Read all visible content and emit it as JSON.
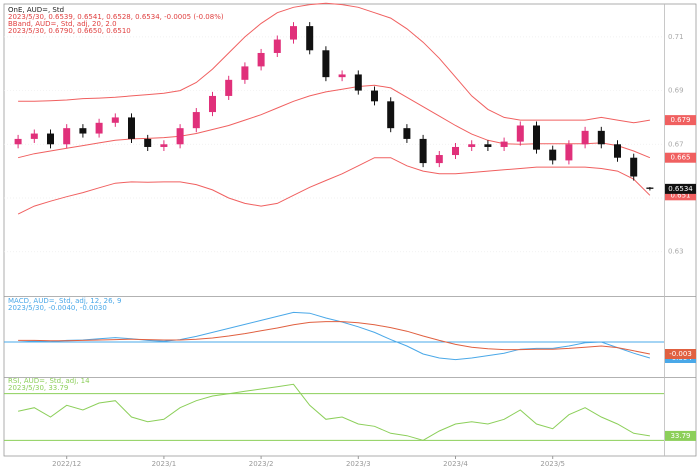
{
  "chart_data": [
    {
      "type": "candlestick",
      "title": "OnE, AUD=, Std",
      "annotations": [
        "2023/5/30, 0.6539, 0.6541, 0.6528, 0.6534, -0.0005 (-0.08%)",
        "BBand, AUD=, Std, adj, 20, 2.0",
        "2023/5/30, 0.6790, 0.6650, 0.6510"
      ],
      "categories": [
        null,
        null,
        null,
        "2022/12",
        null,
        null,
        null,
        null,
        null,
        "2023/1",
        null,
        null,
        null,
        null,
        null,
        "2023/2",
        null,
        null,
        null,
        null,
        null,
        "2023/3",
        null,
        null,
        null,
        null,
        null,
        "2023/4",
        null,
        null,
        null,
        null,
        null,
        "2023/5",
        null,
        null,
        null,
        null,
        null,
        null
      ],
      "open": [
        0.67,
        0.672,
        0.674,
        0.67,
        0.676,
        0.674,
        0.678,
        0.68,
        0.672,
        0.669,
        0.67,
        0.676,
        0.682,
        0.688,
        0.694,
        0.699,
        0.704,
        0.709,
        0.714,
        0.705,
        0.695,
        0.696,
        0.69,
        0.686,
        0.676,
        0.672,
        0.663,
        0.666,
        0.669,
        0.67,
        0.669,
        0.671,
        0.677,
        0.668,
        0.664,
        0.67,
        0.675,
        0.67,
        0.665,
        0.6539
      ],
      "high": [
        0.6735,
        0.6755,
        0.6755,
        0.6775,
        0.6775,
        0.6795,
        0.6815,
        0.6815,
        0.6735,
        0.6715,
        0.6775,
        0.6835,
        0.6895,
        0.6955,
        0.7005,
        0.7055,
        0.7105,
        0.7155,
        0.7155,
        0.7065,
        0.6975,
        0.6975,
        0.6915,
        0.6875,
        0.6775,
        0.6735,
        0.6675,
        0.6705,
        0.6715,
        0.6715,
        0.6725,
        0.6785,
        0.6785,
        0.6695,
        0.6715,
        0.6765,
        0.6765,
        0.6715,
        0.6665,
        0.6541
      ],
      "low": [
        0.6685,
        0.6705,
        0.6685,
        0.6685,
        0.6725,
        0.6725,
        0.6765,
        0.6705,
        0.6675,
        0.6675,
        0.6685,
        0.6745,
        0.6805,
        0.6865,
        0.6925,
        0.6975,
        0.7025,
        0.7075,
        0.7035,
        0.6935,
        0.6935,
        0.6885,
        0.6845,
        0.6745,
        0.6705,
        0.6615,
        0.6615,
        0.6645,
        0.6675,
        0.6675,
        0.6675,
        0.6695,
        0.6665,
        0.6625,
        0.6625,
        0.6685,
        0.6685,
        0.6635,
        0.6565,
        0.6528
      ],
      "close": [
        0.672,
        0.674,
        0.67,
        0.676,
        0.674,
        0.678,
        0.68,
        0.672,
        0.669,
        0.67,
        0.676,
        0.682,
        0.688,
        0.694,
        0.699,
        0.704,
        0.709,
        0.714,
        0.705,
        0.695,
        0.696,
        0.69,
        0.686,
        0.676,
        0.672,
        0.663,
        0.666,
        0.669,
        0.67,
        0.669,
        0.671,
        0.677,
        0.668,
        0.664,
        0.67,
        0.675,
        0.67,
        0.665,
        0.658,
        0.6534
      ],
      "up_color": "#e0307a",
      "down_color": "#111111",
      "end_label": true,
      "end_label_color": "#111111",
      "series": [
        {
          "color": "#f06060",
          "end_label": true,
          "values": [
            0.686,
            0.686,
            0.6862,
            0.6865,
            0.687,
            0.6872,
            0.6875,
            0.688,
            0.6885,
            0.689,
            0.69,
            0.693,
            0.698,
            0.704,
            0.71,
            0.715,
            0.719,
            0.721,
            0.722,
            0.7225,
            0.722,
            0.721,
            0.719,
            0.717,
            0.713,
            0.708,
            0.702,
            0.695,
            0.688,
            0.683,
            0.68,
            0.679,
            0.679,
            0.679,
            0.679,
            0.679,
            0.68,
            0.679,
            0.678,
            0.679
          ]
        },
        {
          "color": "#f06060",
          "end_label": true,
          "values": [
            0.665,
            0.6665,
            0.6675,
            0.6685,
            0.6695,
            0.6705,
            0.6715,
            0.672,
            0.6722,
            0.6725,
            0.673,
            0.674,
            0.6755,
            0.677,
            0.679,
            0.681,
            0.6835,
            0.686,
            0.688,
            0.6895,
            0.6905,
            0.6915,
            0.692,
            0.691,
            0.6875,
            0.684,
            0.6805,
            0.677,
            0.6738,
            0.6715,
            0.6702,
            0.67,
            0.6702,
            0.6702,
            0.6702,
            0.6702,
            0.6705,
            0.6695,
            0.6675,
            0.665
          ]
        },
        {
          "color": "#f06060",
          "end_label": true,
          "values": [
            0.644,
            0.647,
            0.6488,
            0.6505,
            0.652,
            0.6538,
            0.6555,
            0.656,
            0.6559,
            0.656,
            0.656,
            0.655,
            0.653,
            0.65,
            0.648,
            0.647,
            0.648,
            0.651,
            0.654,
            0.6565,
            0.659,
            0.662,
            0.665,
            0.665,
            0.662,
            0.66,
            0.659,
            0.659,
            0.6595,
            0.66,
            0.6605,
            0.661,
            0.6615,
            0.6615,
            0.6615,
            0.6615,
            0.661,
            0.66,
            0.657,
            0.651
          ]
        }
      ],
      "ylim": [
        0.615,
        0.72
      ],
      "yticks": [
        0.63,
        0.65,
        0.67,
        0.69,
        0.71
      ],
      "grid": true
    },
    {
      "type": "line",
      "title": "MACD, AUD=, Std, adj, 12, 26, 9",
      "annotations": [
        "2023/5/30, -0.0040, -0.0030"
      ],
      "series": [
        {
          "color": "#4aa8e8",
          "end_label": true,
          "values": [
            0.0,
            0.0002,
            0.0001,
            0.0004,
            0.0005,
            0.0008,
            0.0011,
            0.0008,
            0.0004,
            0.0002,
            0.0006,
            0.0014,
            0.0024,
            0.0034,
            0.0044,
            0.0054,
            0.0064,
            0.0074,
            0.0072,
            0.006,
            0.005,
            0.0038,
            0.0024,
            0.0006,
            -0.001,
            -0.003,
            -0.004,
            -0.0044,
            -0.004,
            -0.0034,
            -0.0028,
            -0.0018,
            -0.0016,
            -0.0016,
            -0.001,
            -0.0002,
            0.0,
            -0.0014,
            -0.0028,
            -0.004
          ]
        },
        {
          "color": "#e06040",
          "end_label": true,
          "values": [
            0.0004,
            0.0004,
            0.0003,
            0.0003,
            0.0004,
            0.0005,
            0.0006,
            0.0007,
            0.0006,
            0.0005,
            0.0005,
            0.0007,
            0.001,
            0.0015,
            0.0021,
            0.0028,
            0.0035,
            0.0043,
            0.0049,
            0.0051,
            0.0051,
            0.0048,
            0.0043,
            0.0036,
            0.0027,
            0.0015,
            0.0004,
            -0.0006,
            -0.0013,
            -0.0017,
            -0.0019,
            -0.0019,
            -0.0018,
            -0.0018,
            -0.0016,
            -0.0013,
            -0.001,
            -0.0014,
            -0.0022,
            -0.003
          ]
        }
      ],
      "levels": [
        0
      ],
      "level_color": "#4aa8e8",
      "ylim": [
        -0.008,
        0.01
      ]
    },
    {
      "type": "line",
      "title": "RSI, AUD=, Std, adj, 14",
      "annotations": [
        "2023/5/30, 33.79"
      ],
      "series": [
        {
          "color": "#8ccf5a",
          "end_label": true,
          "values": [
            55,
            58,
            50,
            60,
            56,
            62,
            64,
            50,
            46,
            48,
            58,
            64,
            68,
            70,
            72,
            74,
            76,
            78,
            60,
            48,
            50,
            44,
            42,
            36,
            34,
            30,
            38,
            44,
            46,
            44,
            48,
            56,
            44,
            40,
            52,
            58,
            50,
            44,
            36,
            33.79
          ]
        }
      ],
      "levels": [
        30,
        70
      ],
      "level_color": "#8ccf5a",
      "ylim": [
        20,
        80
      ]
    }
  ]
}
